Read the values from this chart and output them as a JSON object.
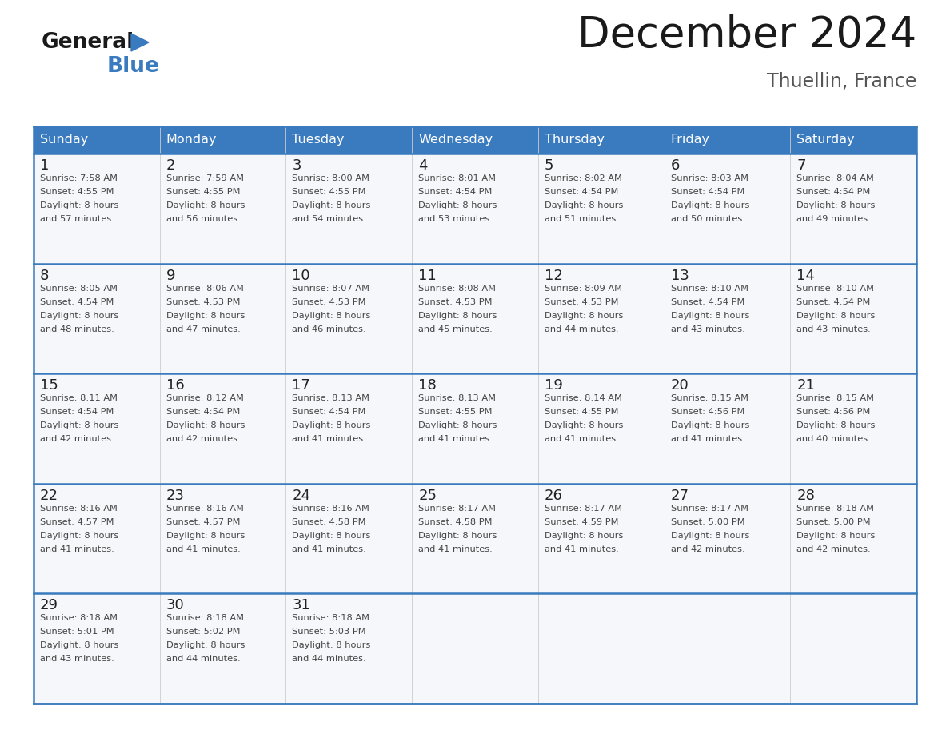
{
  "title": "December 2024",
  "subtitle": "Thuellin, France",
  "days_of_week": [
    "Sunday",
    "Monday",
    "Tuesday",
    "Wednesday",
    "Thursday",
    "Friday",
    "Saturday"
  ],
  "header_bg_color": "#3a7bbf",
  "header_text_color": "#ffffff",
  "cell_bg_color": "#f5f7fa",
  "row_line_color": "#3a7bbf",
  "text_color": "#444444",
  "day_num_color": "#222222",
  "title_color": "#1a1a1a",
  "subtitle_color": "#555555",
  "weeks": [
    [
      {
        "day": 1,
        "sunrise": "7:58 AM",
        "sunset": "4:55 PM",
        "daylight": "8 hours and 57 minutes."
      },
      {
        "day": 2,
        "sunrise": "7:59 AM",
        "sunset": "4:55 PM",
        "daylight": "8 hours and 56 minutes."
      },
      {
        "day": 3,
        "sunrise": "8:00 AM",
        "sunset": "4:55 PM",
        "daylight": "8 hours and 54 minutes."
      },
      {
        "day": 4,
        "sunrise": "8:01 AM",
        "sunset": "4:54 PM",
        "daylight": "8 hours and 53 minutes."
      },
      {
        "day": 5,
        "sunrise": "8:02 AM",
        "sunset": "4:54 PM",
        "daylight": "8 hours and 51 minutes."
      },
      {
        "day": 6,
        "sunrise": "8:03 AM",
        "sunset": "4:54 PM",
        "daylight": "8 hours and 50 minutes."
      },
      {
        "day": 7,
        "sunrise": "8:04 AM",
        "sunset": "4:54 PM",
        "daylight": "8 hours and 49 minutes."
      }
    ],
    [
      {
        "day": 8,
        "sunrise": "8:05 AM",
        "sunset": "4:54 PM",
        "daylight": "8 hours and 48 minutes."
      },
      {
        "day": 9,
        "sunrise": "8:06 AM",
        "sunset": "4:53 PM",
        "daylight": "8 hours and 47 minutes."
      },
      {
        "day": 10,
        "sunrise": "8:07 AM",
        "sunset": "4:53 PM",
        "daylight": "8 hours and 46 minutes."
      },
      {
        "day": 11,
        "sunrise": "8:08 AM",
        "sunset": "4:53 PM",
        "daylight": "8 hours and 45 minutes."
      },
      {
        "day": 12,
        "sunrise": "8:09 AM",
        "sunset": "4:53 PM",
        "daylight": "8 hours and 44 minutes."
      },
      {
        "day": 13,
        "sunrise": "8:10 AM",
        "sunset": "4:54 PM",
        "daylight": "8 hours and 43 minutes."
      },
      {
        "day": 14,
        "sunrise": "8:10 AM",
        "sunset": "4:54 PM",
        "daylight": "8 hours and 43 minutes."
      }
    ],
    [
      {
        "day": 15,
        "sunrise": "8:11 AM",
        "sunset": "4:54 PM",
        "daylight": "8 hours and 42 minutes."
      },
      {
        "day": 16,
        "sunrise": "8:12 AM",
        "sunset": "4:54 PM",
        "daylight": "8 hours and 42 minutes."
      },
      {
        "day": 17,
        "sunrise": "8:13 AM",
        "sunset": "4:54 PM",
        "daylight": "8 hours and 41 minutes."
      },
      {
        "day": 18,
        "sunrise": "8:13 AM",
        "sunset": "4:55 PM",
        "daylight": "8 hours and 41 minutes."
      },
      {
        "day": 19,
        "sunrise": "8:14 AM",
        "sunset": "4:55 PM",
        "daylight": "8 hours and 41 minutes."
      },
      {
        "day": 20,
        "sunrise": "8:15 AM",
        "sunset": "4:56 PM",
        "daylight": "8 hours and 41 minutes."
      },
      {
        "day": 21,
        "sunrise": "8:15 AM",
        "sunset": "4:56 PM",
        "daylight": "8 hours and 40 minutes."
      }
    ],
    [
      {
        "day": 22,
        "sunrise": "8:16 AM",
        "sunset": "4:57 PM",
        "daylight": "8 hours and 41 minutes."
      },
      {
        "day": 23,
        "sunrise": "8:16 AM",
        "sunset": "4:57 PM",
        "daylight": "8 hours and 41 minutes."
      },
      {
        "day": 24,
        "sunrise": "8:16 AM",
        "sunset": "4:58 PM",
        "daylight": "8 hours and 41 minutes."
      },
      {
        "day": 25,
        "sunrise": "8:17 AM",
        "sunset": "4:58 PM",
        "daylight": "8 hours and 41 minutes."
      },
      {
        "day": 26,
        "sunrise": "8:17 AM",
        "sunset": "4:59 PM",
        "daylight": "8 hours and 41 minutes."
      },
      {
        "day": 27,
        "sunrise": "8:17 AM",
        "sunset": "5:00 PM",
        "daylight": "8 hours and 42 minutes."
      },
      {
        "day": 28,
        "sunrise": "8:18 AM",
        "sunset": "5:00 PM",
        "daylight": "8 hours and 42 minutes."
      }
    ],
    [
      {
        "day": 29,
        "sunrise": "8:18 AM",
        "sunset": "5:01 PM",
        "daylight": "8 hours and 43 minutes."
      },
      {
        "day": 30,
        "sunrise": "8:18 AM",
        "sunset": "5:02 PM",
        "daylight": "8 hours and 44 minutes."
      },
      {
        "day": 31,
        "sunrise": "8:18 AM",
        "sunset": "5:03 PM",
        "daylight": "8 hours and 44 minutes."
      },
      null,
      null,
      null,
      null
    ]
  ],
  "logo_color_general": "#1a1a1a",
  "logo_color_blue": "#3a7bbf",
  "logo_triangle_color": "#3a7bbf",
  "fig_width": 11.88,
  "fig_height": 9.18,
  "dpi": 100
}
